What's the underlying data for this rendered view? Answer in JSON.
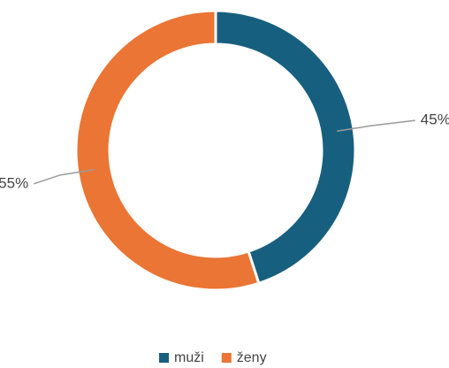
{
  "chart_data": {
    "type": "donut",
    "categories": [
      "muži",
      "ženy"
    ],
    "values": [
      45,
      55
    ],
    "value_labels": [
      "45%",
      "55%"
    ],
    "colors": [
      "#175f7f",
      "#ea7534"
    ],
    "legend": "bottom"
  }
}
